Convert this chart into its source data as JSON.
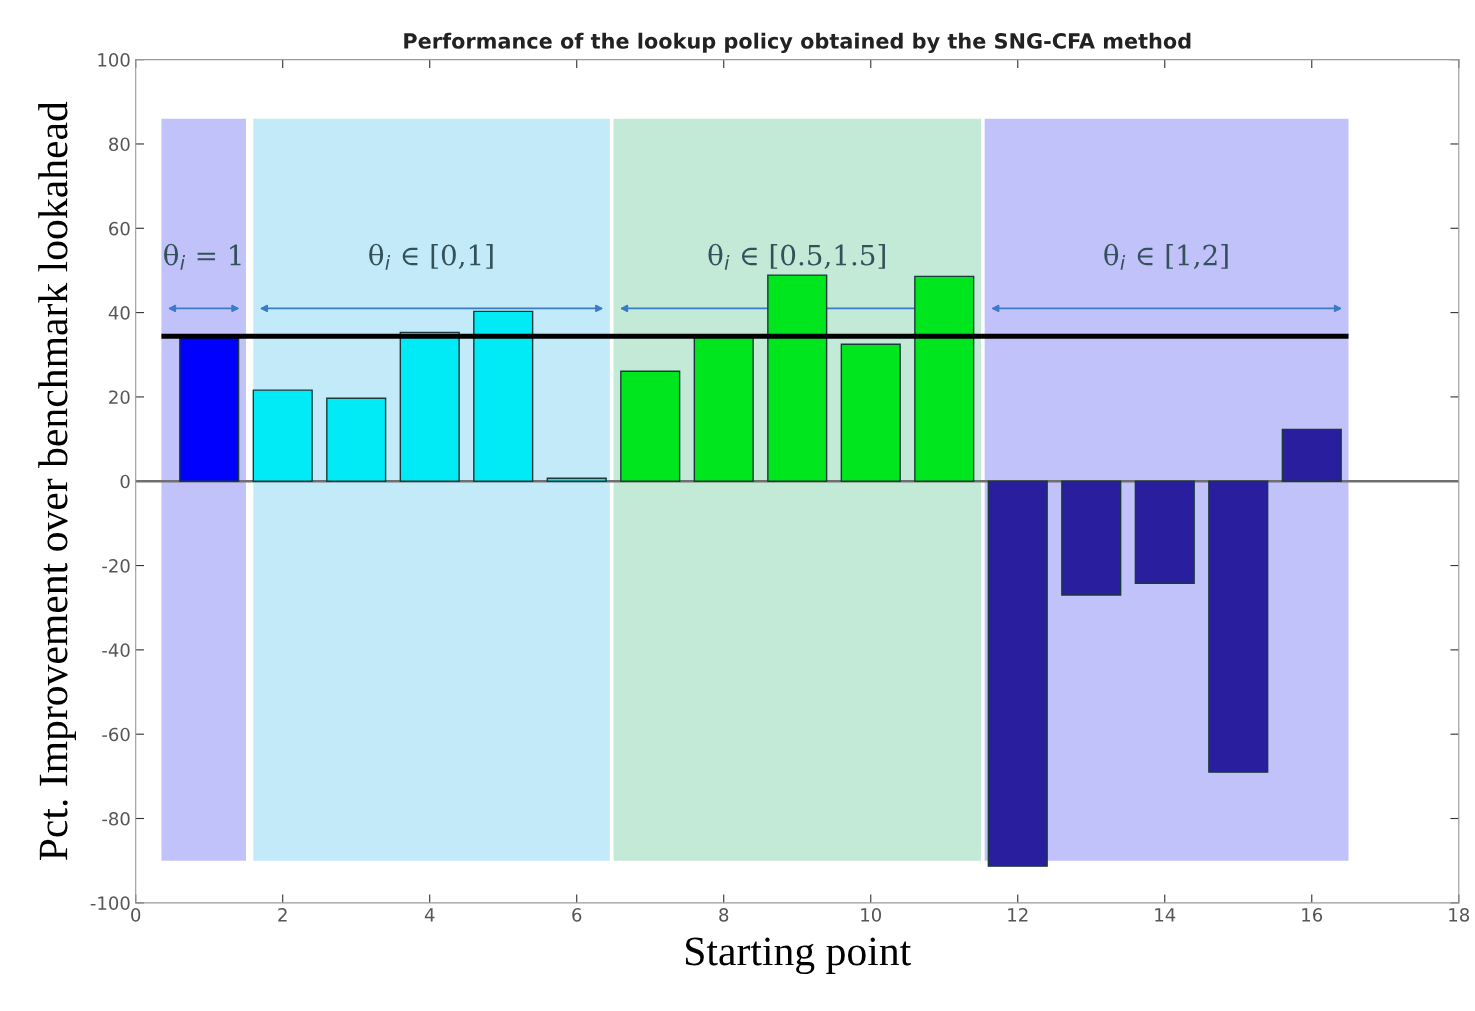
{
  "chart_data": {
    "type": "bar",
    "title": "Performance of the lookup policy obtained by the SNG-CFA method",
    "xlabel": "Starting point",
    "ylabel": "Pct. Improvement over benchmark lookahead",
    "x": [
      1,
      2,
      3,
      4,
      5,
      6,
      7,
      8,
      9,
      10,
      11,
      12,
      13,
      14,
      15,
      16
    ],
    "values": [
      34.4,
      21.6,
      19.7,
      35.3,
      40.3,
      0.7,
      26.1,
      34.4,
      48.9,
      32.5,
      48.6,
      -91.3,
      -27.0,
      -24.2,
      -69.0,
      12.3
    ],
    "colors": [
      "#0000ff",
      "#00ebf5",
      "#00ebf5",
      "#00ebf5",
      "#00ebf5",
      "#00ebf5",
      "#00e61e",
      "#00e61e",
      "#00e61e",
      "#00e61e",
      "#00e61e",
      "#291f9e",
      "#291f9e",
      "#291f9e",
      "#291f9e",
      "#291f9e"
    ],
    "xlim": [
      0,
      18
    ],
    "xticks": [
      0,
      2,
      4,
      6,
      8,
      10,
      12,
      14,
      16,
      18
    ],
    "ylim": [
      -100,
      100
    ],
    "yticks": [
      -100,
      -80,
      -60,
      -40,
      -20,
      0,
      20,
      40,
      60,
      80,
      100
    ],
    "bands": [
      {
        "axis": "x",
        "from": 0.35,
        "to": 1.5,
        "label": "θ$_{i}$ = 1",
        "color": "#c2c2fb"
      },
      {
        "axis": "x",
        "from": 1.6,
        "to": 6.45,
        "label": "θ$_{i}$ ∈ [0,1]",
        "color": "#c2eaf8"
      },
      {
        "axis": "x",
        "from": 6.5,
        "to": 11.5,
        "label": "θ$_{i}$ ∈ [0.5,1.5]",
        "color": "#c2ead6"
      },
      {
        "axis": "x",
        "from": 11.55,
        "to": 16.5,
        "label": "θ$_{i}$ ∈ [1,2]",
        "color": "#c2c2fb"
      }
    ],
    "ref_lines": [
      {
        "axis": "y",
        "value": 34.4,
        "color": "#000000",
        "line_style": "solid"
      },
      {
        "axis": "y",
        "value": 0,
        "color": "#707070",
        "line_style": "solid"
      }
    ],
    "grid": false
  }
}
